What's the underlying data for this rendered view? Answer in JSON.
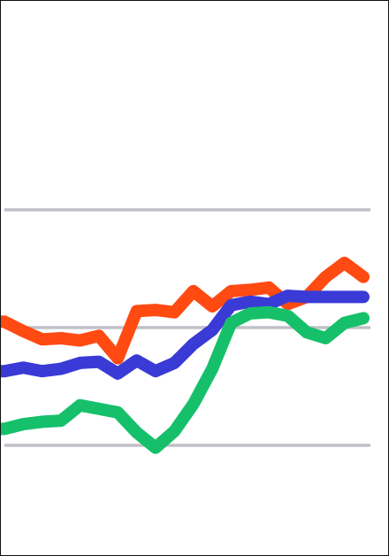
{
  "chart_data": {
    "type": "line",
    "x": [
      1,
      2,
      3,
      4,
      5,
      6,
      7,
      8,
      9,
      10,
      11,
      12,
      13,
      14,
      15,
      16,
      17,
      18,
      19,
      20
    ],
    "ylim": [
      0,
      4
    ],
    "gridlines": [
      1,
      2,
      3
    ],
    "grid": "horizontal",
    "legend": "none",
    "title": "",
    "xlabel": "",
    "ylabel": "",
    "series": [
      {
        "color": "#ff4a12",
        "values": [
          2.05,
          1.97,
          1.9,
          1.91,
          1.89,
          1.93,
          1.74,
          2.14,
          2.15,
          2.13,
          2.31,
          2.18,
          2.31,
          2.32,
          2.34,
          2.2,
          2.26,
          2.43,
          2.55,
          2.43
        ]
      },
      {
        "color": "#3a3ad6",
        "values": [
          1.63,
          1.66,
          1.63,
          1.65,
          1.7,
          1.71,
          1.61,
          1.72,
          1.63,
          1.7,
          1.86,
          1.98,
          2.19,
          2.22,
          2.2,
          2.27,
          2.26,
          2.26,
          2.26,
          2.26
        ]
      },
      {
        "color": "#16c06a",
        "values": [
          1.14,
          1.18,
          1.2,
          1.21,
          1.34,
          1.31,
          1.28,
          1.11,
          0.98,
          1.12,
          1.35,
          1.65,
          2.04,
          2.12,
          2.13,
          2.1,
          1.96,
          1.91,
          2.04,
          2.08
        ]
      }
    ]
  }
}
